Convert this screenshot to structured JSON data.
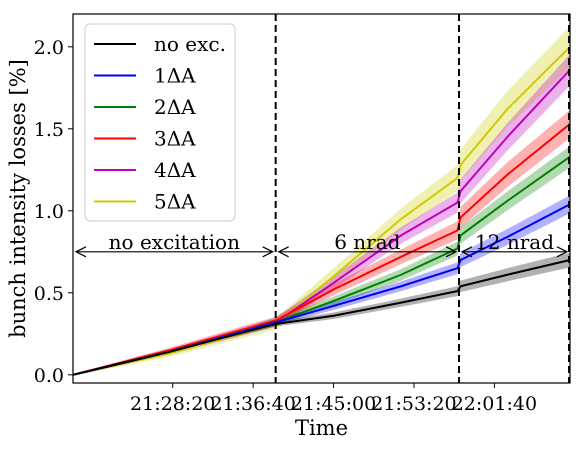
{
  "chart_data": {
    "type": "line",
    "xlabel": "Time",
    "ylabel": "bunch intensity losses [%]",
    "x_unit": "hh:mm:ss",
    "xlim": [
      "21:18:00",
      "22:09:30"
    ],
    "ylim": [
      -0.05,
      2.2
    ],
    "x_ticks": [
      "21:28:20",
      "21:36:40",
      "21:45:00",
      "21:53:20",
      "22:01:40"
    ],
    "y_ticks": [
      0.0,
      0.5,
      1.0,
      1.5,
      2.0
    ],
    "y_tick_labels": [
      "0.0",
      "0.5",
      "1.0",
      "1.5",
      "2.0"
    ],
    "legend_position": "top-left",
    "grid": false,
    "vlines": [
      {
        "x": "21:39:00",
        "style": "dashed"
      },
      {
        "x": "21:58:00",
        "style": "dashed"
      },
      {
        "x": "22:09:30",
        "style": "dashed"
      }
    ],
    "annotations": [
      {
        "text": "no excitation",
        "from": "21:18:00",
        "to": "21:39:00",
        "y": 0.75
      },
      {
        "text": "6 nrad",
        "from": "21:39:00",
        "to": "21:58:00",
        "y": 0.75
      },
      {
        "text": "12 nrad",
        "from": "21:58:00",
        "to": "22:09:30",
        "y": 0.75
      }
    ],
    "x": [
      "21:18:00",
      "21:28:00",
      "21:39:00",
      "21:45:00",
      "21:52:00",
      "21:57:50",
      "21:58:10",
      "22:03:00",
      "22:09:30"
    ],
    "series": [
      {
        "name": "no exc.",
        "color": "#000000",
        "values": [
          0.0,
          0.14,
          0.31,
          0.36,
          0.44,
          0.51,
          0.54,
          0.61,
          0.7
        ],
        "band": 0.04
      },
      {
        "name": "1ΔA",
        "color": "#0000ff",
        "values": [
          0.0,
          0.14,
          0.32,
          0.42,
          0.54,
          0.65,
          0.7,
          0.84,
          1.04
        ],
        "band": 0.05
      },
      {
        "name": "2ΔA",
        "color": "#008000",
        "values": [
          0.0,
          0.14,
          0.32,
          0.45,
          0.61,
          0.77,
          0.85,
          1.06,
          1.33
        ],
        "band": 0.06
      },
      {
        "name": "3ΔA",
        "color": "#ff0000",
        "values": [
          0.0,
          0.15,
          0.33,
          0.52,
          0.72,
          0.88,
          0.96,
          1.22,
          1.53
        ],
        "band": 0.08
      },
      {
        "name": "4ΔA",
        "color": "#bf00bf",
        "values": [
          0.0,
          0.14,
          0.32,
          0.56,
          0.85,
          1.05,
          1.12,
          1.45,
          1.86
        ],
        "band": 0.09
      },
      {
        "name": "5ΔA",
        "color": "#cccc00",
        "values": [
          0.0,
          0.13,
          0.31,
          0.6,
          0.95,
          1.2,
          1.28,
          1.62,
          2.0
        ],
        "band": 0.12
      }
    ],
    "legend": {
      "labels": [
        "no exc.",
        "1ΔA",
        "2ΔA",
        "3ΔA",
        "4ΔA",
        "5ΔA"
      ]
    }
  }
}
